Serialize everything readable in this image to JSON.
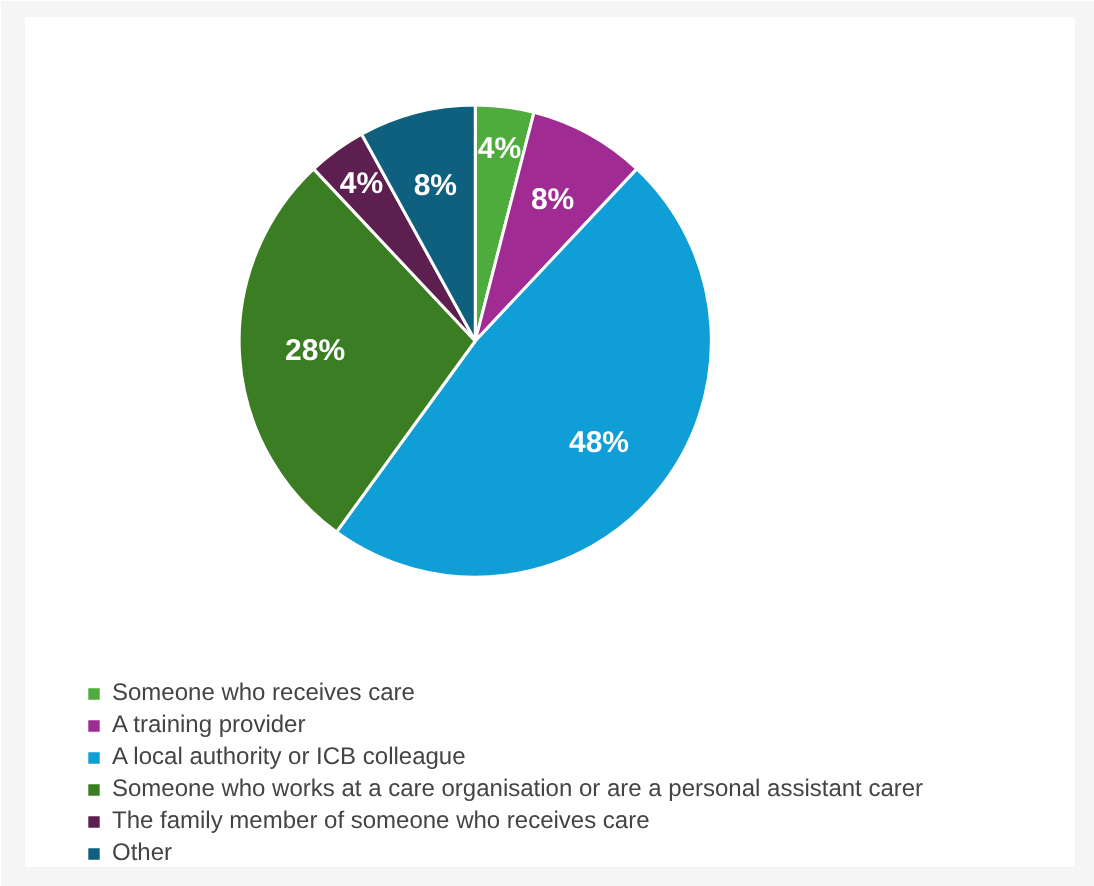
{
  "chart_data": {
    "type": "pie",
    "categories": [
      "Someone who receives care",
      "A training provider",
      "A local authority or ICB colleague",
      "Someone who works at a care organisation or are a personal assistant carer",
      "The family member of someone who receives care",
      "Other"
    ],
    "values": [
      4,
      8,
      48,
      28,
      4,
      8
    ],
    "colors": [
      "#4eac3c",
      "#a02b93",
      "#0f9ed5",
      "#3b7d23",
      "#5c1f4f",
      "#0e607e"
    ],
    "value_labels": [
      "4%",
      "8%",
      "48%",
      "28%",
      "4%",
      "8%"
    ],
    "legend": "bottom"
  }
}
